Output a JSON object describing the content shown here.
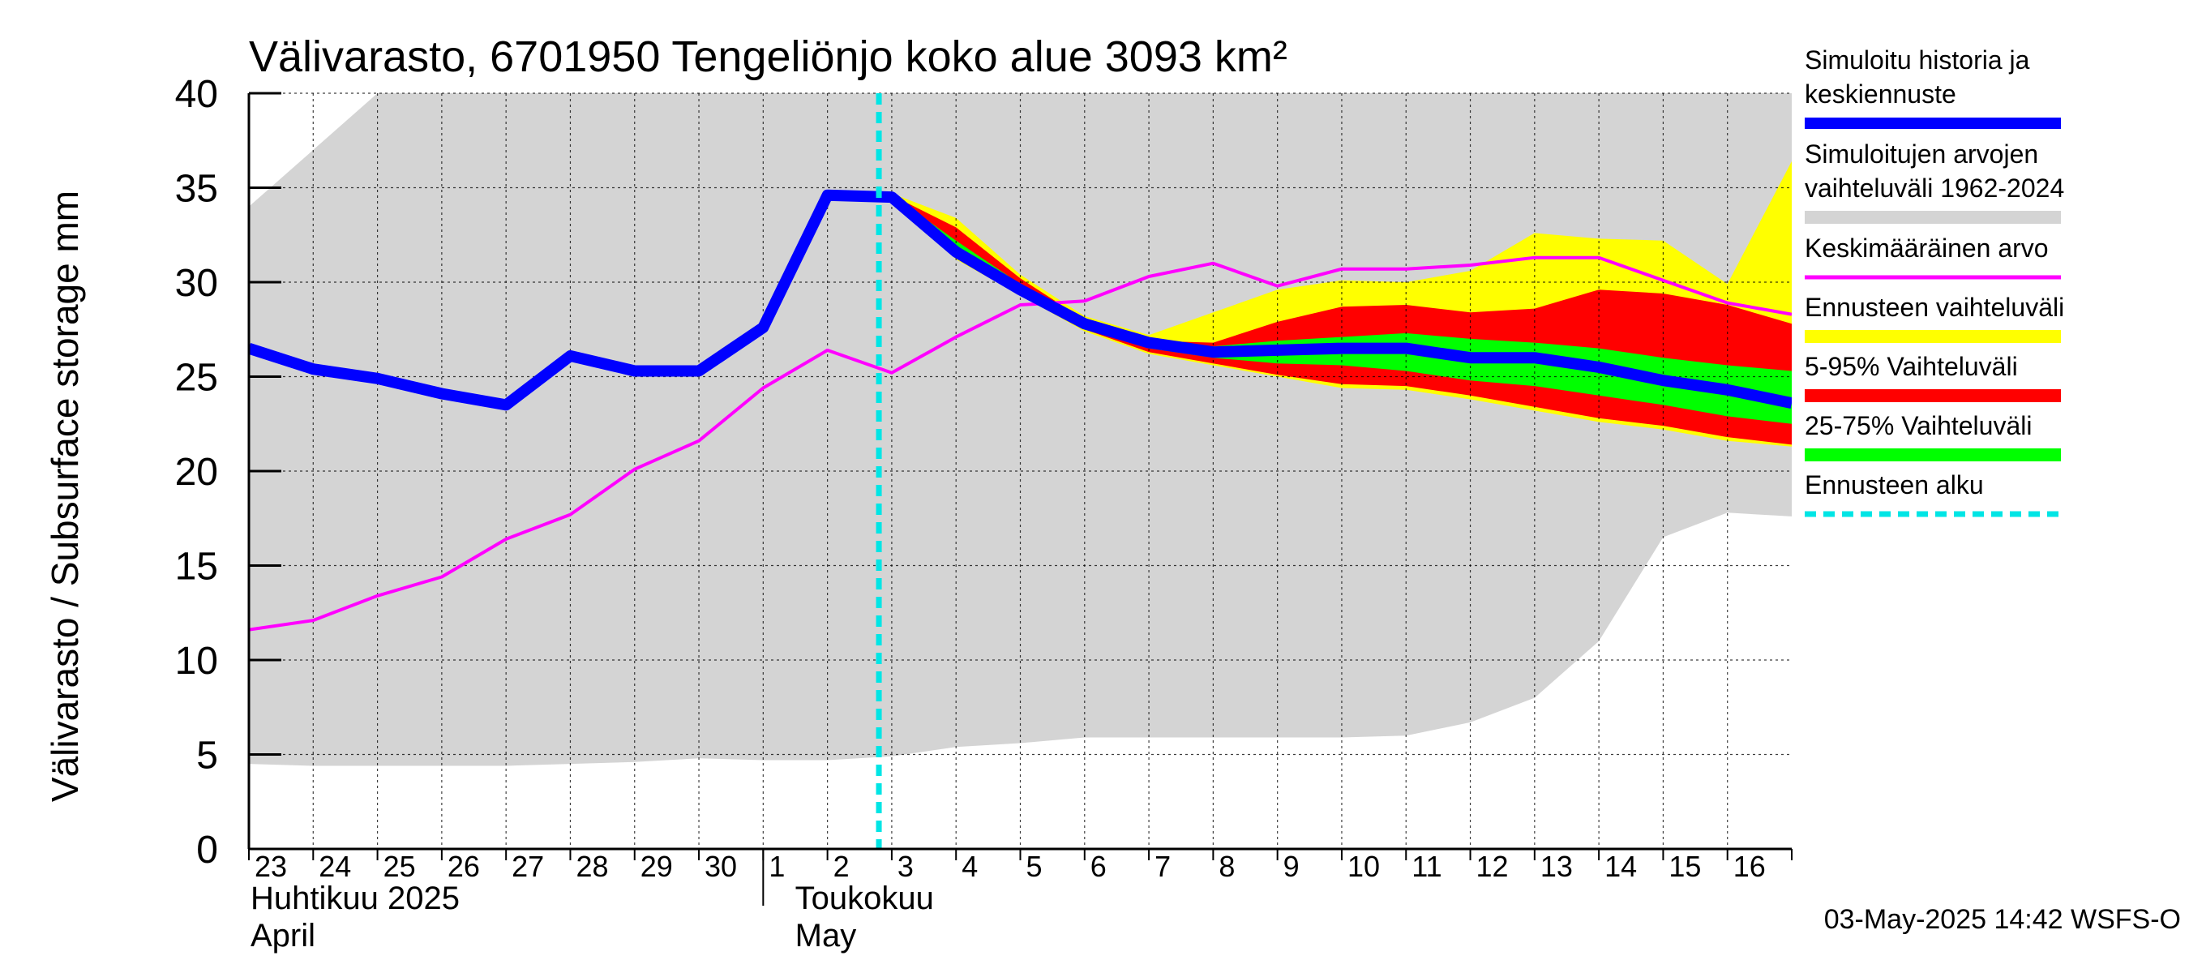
{
  "colors": {
    "history_range": "#d4d4d4",
    "forecast_range": "#ffff00",
    "p5_95": "#ff0000",
    "p25_75": "#00ff00",
    "simulated": "#0000ff",
    "mean": "#ff00ff",
    "forecast_start": "#00e5e5"
  },
  "chart_data": {
    "type": "area",
    "title": "Välivarasto, 6701950 Tengeliönjo koko alue 3093 km²",
    "ylabel": "Välivarasto / Subsurface storage  mm",
    "ylim": [
      0,
      40
    ],
    "yticks": [
      0,
      5,
      10,
      15,
      20,
      25,
      30,
      35,
      40
    ],
    "x_labels": [
      "23",
      "24",
      "25",
      "26",
      "27",
      "28",
      "29",
      "30",
      "1",
      "2",
      "3",
      "4",
      "5",
      "6",
      "7",
      "8",
      "9",
      "10",
      "11",
      "12",
      "13",
      "14",
      "15",
      "16"
    ],
    "month_labels": [
      {
        "fi": "Huhtikuu  2025",
        "en": "April"
      },
      {
        "fi": "Toukokuu",
        "en": "May"
      }
    ],
    "forecast_start_day": 9.8,
    "history_range": {
      "x": [
        0,
        1,
        2,
        3,
        4,
        5,
        6,
        7,
        8,
        9,
        10,
        11,
        12,
        13,
        14,
        15,
        16,
        17,
        18,
        19,
        20,
        21,
        22,
        23,
        24
      ],
      "low": [
        4.5,
        4.4,
        4.4,
        4.4,
        4.4,
        4.5,
        4.6,
        4.8,
        4.7,
        4.7,
        4.9,
        5.4,
        5.6,
        5.9,
        5.9,
        5.9,
        5.9,
        5.9,
        6.0,
        6.7,
        8.0,
        11.0,
        16.5,
        17.8,
        17.6
      ],
      "high": [
        34,
        37,
        40,
        40,
        40,
        40,
        40,
        40,
        40,
        40,
        40,
        40,
        40,
        40,
        40,
        40,
        40,
        40,
        40,
        40,
        40,
        40,
        40,
        40,
        40
      ]
    },
    "forecast_x": [
      10,
      11,
      12,
      13,
      14,
      15,
      16,
      17,
      18,
      19,
      20,
      21,
      22,
      23,
      24
    ],
    "forecast_range": {
      "low": [
        34.5,
        31.2,
        29.3,
        27.4,
        26.2,
        25.6,
        25.0,
        24.4,
        24.3,
        23.8,
        23.2,
        22.6,
        22.2,
        21.6,
        21.3
      ],
      "high": [
        34.7,
        33.4,
        30.4,
        28.2,
        27.2,
        28.4,
        29.6,
        30.1,
        30.0,
        30.6,
        32.6,
        32.3,
        32.2,
        29.9,
        36.4
      ]
    },
    "p5_95": {
      "low": [
        34.5,
        31.3,
        29.4,
        27.5,
        26.3,
        25.7,
        25.1,
        24.6,
        24.5,
        24.0,
        23.4,
        22.8,
        22.4,
        21.8,
        21.4
      ],
      "high": [
        34.6,
        32.9,
        30.2,
        28.0,
        26.9,
        26.8,
        27.9,
        28.7,
        28.8,
        28.4,
        28.6,
        29.6,
        29.4,
        28.8,
        27.8
      ]
    },
    "p25_75": {
      "low": [
        34.5,
        31.5,
        29.6,
        27.7,
        26.5,
        26.0,
        25.7,
        25.6,
        25.3,
        24.8,
        24.5,
        24.0,
        23.5,
        22.9,
        22.5
      ],
      "high": [
        34.6,
        32.2,
        29.9,
        27.9,
        26.8,
        26.6,
        26.9,
        27.1,
        27.3,
        27.0,
        26.8,
        26.5,
        26.0,
        25.6,
        25.3
      ]
    },
    "series": [
      {
        "name": "Simuloitu historia ja keskiennuste",
        "x": [
          0,
          1,
          2,
          3,
          4,
          5,
          6,
          7,
          8,
          9,
          10,
          11,
          12,
          13,
          14,
          15,
          16,
          17,
          18,
          19,
          20,
          21,
          22,
          23,
          24
        ],
        "values": [
          26.5,
          25.4,
          24.9,
          24.1,
          23.5,
          26.1,
          25.3,
          25.3,
          27.6,
          34.6,
          34.5,
          31.6,
          29.6,
          27.8,
          26.8,
          26.3,
          26.4,
          26.5,
          26.5,
          26.0,
          26.0,
          25.5,
          24.8,
          24.3,
          23.6
        ]
      },
      {
        "name": "Keskimääräinen arvo",
        "x": [
          0,
          1,
          2,
          3,
          4,
          5,
          6,
          7,
          8,
          9,
          10,
          11,
          12,
          13,
          14,
          15,
          16,
          17,
          18,
          19,
          20,
          21,
          22,
          23,
          24
        ],
        "values": [
          11.6,
          12.1,
          13.4,
          14.4,
          16.4,
          17.7,
          20.1,
          21.6,
          24.4,
          26.4,
          25.2,
          27.1,
          28.8,
          29.0,
          30.3,
          31.0,
          29.8,
          30.7,
          30.7,
          30.9,
          31.3,
          31.3,
          30.1,
          28.9,
          28.3
        ]
      }
    ]
  },
  "legend": [
    {
      "lines": [
        "Simuloitu historia ja",
        "keskiennuste"
      ],
      "key": "simulated",
      "style": "line"
    },
    {
      "lines": [
        "Simuloitujen arvojen",
        "vaihteluväli 1962-2024"
      ],
      "key": "history_range",
      "style": "band"
    },
    {
      "lines": [
        "Keskimääräinen arvo"
      ],
      "key": "mean",
      "style": "thin"
    },
    {
      "lines": [
        "Ennusteen vaihteluväli"
      ],
      "key": "forecast_range",
      "style": "band"
    },
    {
      "lines": [
        "5-95% Vaihteluväli"
      ],
      "key": "p5_95",
      "style": "band"
    },
    {
      "lines": [
        "25-75% Vaihteluväli"
      ],
      "key": "p25_75",
      "style": "band"
    },
    {
      "lines": [
        "Ennusteen alku"
      ],
      "key": "forecast_start",
      "style": "dashed"
    }
  ],
  "footer": "03-May-2025 14:42 WSFS-O"
}
